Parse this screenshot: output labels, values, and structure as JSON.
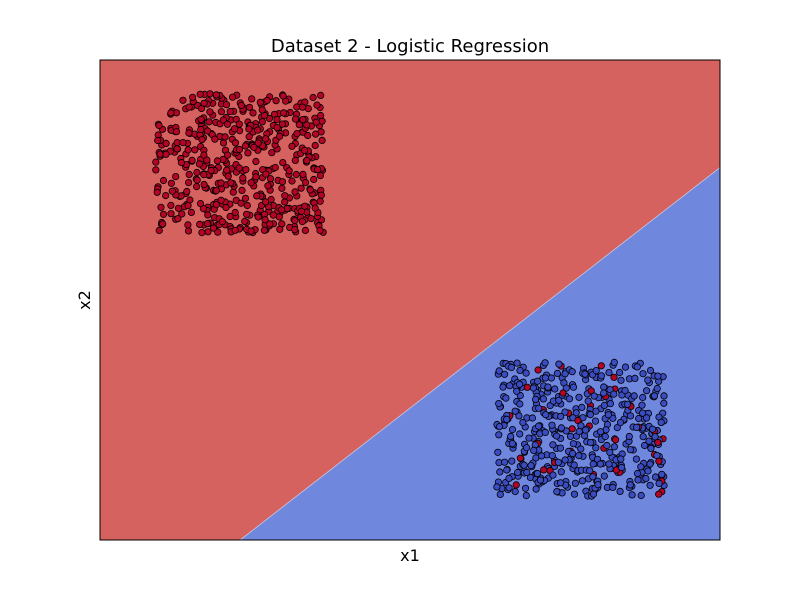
{
  "chart_data": {
    "type": "scatter",
    "title": "Dataset 2 - Logistic Regression",
    "xlabel": "x1",
    "ylabel": "x2",
    "ticks_visible": false,
    "grid": false,
    "legend": "none",
    "xlim": [
      0,
      10
    ],
    "ylim": [
      0,
      10
    ],
    "decision_boundary": {
      "description_free": true,
      "points": [
        [
          2.26,
          0
        ],
        [
          10,
          7.76
        ]
      ]
    },
    "regions": [
      {
        "class": "red",
        "color": "#d6625f",
        "side": "upper-left"
      },
      {
        "class": "blue",
        "color": "#7087de",
        "side": "lower-right"
      }
    ],
    "clusters": [
      {
        "class": "red",
        "color": "#b40426",
        "x_range": [
          0.9,
          3.6
        ],
        "y_range": [
          6.4,
          9.3
        ],
        "count": 500,
        "mislabeled_count": 0
      },
      {
        "class": "blue",
        "color": "#3b4cc0",
        "x_range": [
          6.4,
          9.1
        ],
        "y_range": [
          0.9,
          3.7
        ],
        "count": 500,
        "mislabeled_count": 40,
        "mislabeled_color": "#b40426"
      }
    ],
    "colors": {
      "point_edge": "#000000",
      "frame": "#000000"
    }
  }
}
